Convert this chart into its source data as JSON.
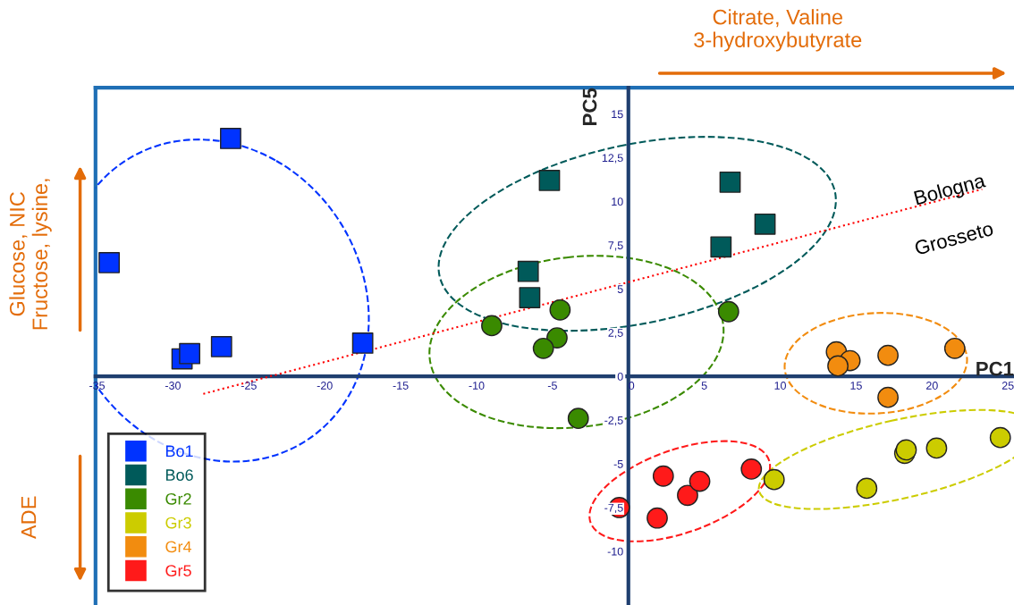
{
  "chart_data": {
    "type": "scatter",
    "xlabel": "PC1",
    "ylabel": "PC5",
    "xlim": [
      -35.1,
      25.4
    ],
    "ylim": [
      -13,
      16.5
    ],
    "xticks": [
      -35,
      -30,
      -25,
      -20,
      -15,
      -10,
      -5,
      0,
      5,
      10,
      15,
      20,
      25
    ],
    "yticks": [
      -10,
      {
        "value": -7.5,
        "label": "-7,5"
      },
      -5,
      {
        "value": -2.5,
        "label": "-2,5"
      },
      0,
      {
        "value": 2.5,
        "label": "2,5"
      },
      5,
      {
        "value": 7.5,
        "label": "7,5"
      },
      10,
      {
        "value": 12.5,
        "label": "12,5"
      },
      15
    ],
    "grid": false,
    "legend": "bottom left",
    "annotations": [
      "Citrate, Valine\n3-hydroxybutyrate",
      "Glucose, NIC\nFructose, lysine,",
      "ADE",
      "Bologna",
      "Grosseto"
    ],
    "series": [
      {
        "name": "Bo1",
        "marker": "square",
        "color": "#0033ff",
        "x": [
          -26.2,
          -34.2,
          -29.4,
          -28.9,
          -26.8,
          -17.5
        ],
        "values": [
          13.6,
          6.5,
          1.0,
          1.3,
          1.7,
          1.9
        ]
      },
      {
        "name": "Bo6",
        "marker": "square",
        "color": "#005a5a",
        "x": [
          -5.2,
          6.7,
          9.0,
          6.1,
          -6.6,
          -6.5
        ],
        "values": [
          11.2,
          11.1,
          8.7,
          7.4,
          6.0,
          4.5
        ]
      },
      {
        "name": "Gr2",
        "marker": "circle",
        "color": "#3a8a00",
        "x": [
          -9.0,
          -4.5,
          -4.7,
          -5.6,
          -3.3,
          6.6
        ],
        "values": [
          2.9,
          3.8,
          2.2,
          1.6,
          -2.4,
          3.7
        ]
      },
      {
        "name": "Gr3",
        "marker": "circle",
        "color": "#cccc00",
        "x": [
          9.6,
          15.7,
          18.2,
          18.3,
          20.3,
          24.5
        ],
        "values": [
          -5.9,
          -6.4,
          -4.4,
          -4.2,
          -4.1,
          -3.5
        ]
      },
      {
        "name": "Gr4",
        "marker": "circle",
        "color": "#f28c0f",
        "x": [
          13.7,
          14.6,
          13.8,
          17.1,
          21.5,
          17.1
        ],
        "values": [
          1.4,
          0.9,
          0.6,
          1.2,
          1.6,
          -1.2
        ]
      },
      {
        "name": "Gr5",
        "marker": "circle",
        "color": "#ff1a1a",
        "x": [
          -0.6,
          1.9,
          2.3,
          3.9,
          4.7,
          8.1
        ],
        "values": [
          -7.5,
          -8.1,
          -5.7,
          -6.8,
          -6.0,
          -5.3
        ]
      },
      {
        "type": "line",
        "marker": "none",
        "line_style": "dotted",
        "color": "#ff0000",
        "x": [
          -28.0,
          23.3
        ],
        "values": [
          -1.0,
          10.7
        ]
      }
    ]
  }
}
